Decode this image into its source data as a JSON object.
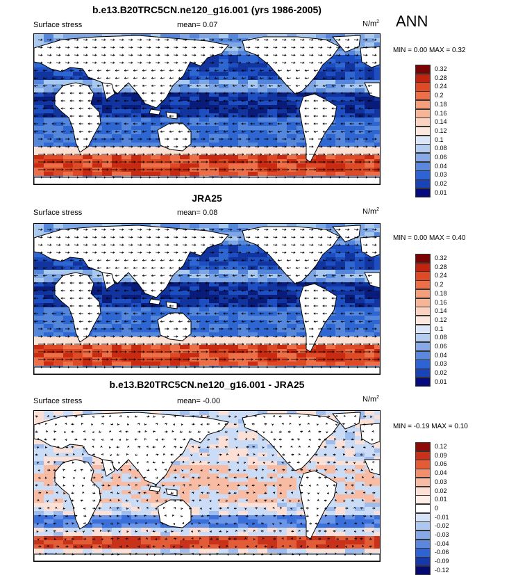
{
  "season_label": "ANN",
  "colormaps": {
    "fields": [
      "#e7f0fb",
      "#c9def5",
      "#a9c8ee",
      "#7fa6e4",
      "#5486db",
      "#2f67d2",
      "#1e4fc2",
      "#12349f",
      "#0a1c79",
      "#050b5a",
      "#d6d9e9",
      "#fbe0d4",
      "#f7c1a9",
      "#f39f7b",
      "#ec6f47",
      "#de4a26",
      "#c82a12",
      "#a3110a",
      "#7a0404"
    ],
    "diff": [
      "#040a4f",
      "#0c2490",
      "#1b47c6",
      "#3b6fda",
      "#6b95e6",
      "#9fbcef",
      "#cbdcf6",
      "#ffffff",
      "#fde0d5",
      "#f8bca5",
      "#f08e6d",
      "#e25c38",
      "#c8321a",
      "#8e0a06"
    ]
  },
  "chart_data": [
    {
      "type": "heatmap",
      "title": "b.e13.B20TRC5CN.ne120_g16.001 (yrs 1986-2005)",
      "left_label": "Surface stress",
      "mean_text": "mean=   0.07",
      "units": "N/m",
      "units_exp": "2",
      "min_max_text": "MIN =   0.00 MAX =   0.32",
      "levels": [
        "0.32",
        "0.28",
        "0.24",
        "0.2",
        "0.18",
        "0.16",
        "0.14",
        "0.12",
        "0.1",
        "0.08",
        "0.06",
        "0.04",
        "0.03",
        "0.02",
        "0.01"
      ]
    },
    {
      "type": "heatmap",
      "title": "JRA25",
      "left_label": "Surface stress",
      "mean_text": "mean=   0.08",
      "units": "N/m",
      "units_exp": "2",
      "min_max_text": "MIN =   0.00 MAX =   0.40",
      "levels": [
        "0.32",
        "0.28",
        "0.24",
        "0.2",
        "0.18",
        "0.16",
        "0.14",
        "0.12",
        "0.1",
        "0.08",
        "0.06",
        "0.04",
        "0.03",
        "0.02",
        "0.01"
      ]
    },
    {
      "type": "heatmap",
      "title": "b.e13.B20TRC5CN.ne120_g16.001 - JRA25",
      "left_label": "Surface stress",
      "mean_text": "mean=  -0.00",
      "units": "N/m",
      "units_exp": "2",
      "min_max_text": "MIN =  -0.19 MAX =   0.10",
      "levels": [
        "0.12",
        "0.09",
        "0.06",
        "0.04",
        "0.03",
        "0.02",
        "0.01",
        "0",
        "-0.01",
        "-0.02",
        "-0.03",
        "-0.04",
        "-0.06",
        "-0.09",
        "-0.12"
      ]
    }
  ]
}
